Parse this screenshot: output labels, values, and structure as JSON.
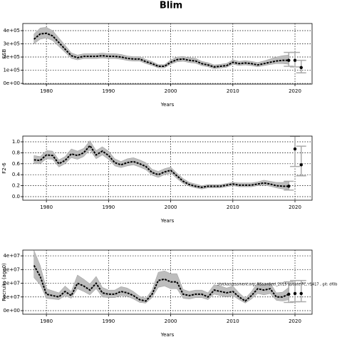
{
  "title": "Blim",
  "chart_data": [
    {
      "type": "line",
      "ylabel": "SSB",
      "xlabel": "Years",
      "x": [
        1978,
        1979,
        1980,
        1981,
        1982,
        1983,
        1984,
        1985,
        1986,
        1987,
        1988,
        1989,
        1990,
        1991,
        1992,
        1993,
        1994,
        1995,
        1996,
        1997,
        1998,
        1999,
        2000,
        2001,
        2002,
        2003,
        2004,
        2005,
        2006,
        2007,
        2008,
        2009,
        2010,
        2011,
        2012,
        2013,
        2014,
        2015,
        2016,
        2017,
        2018,
        2019
      ],
      "values": [
        335000.0,
        375000.0,
        380000.0,
        360000.0,
        310000.0,
        260000.0,
        210000.0,
        195000.0,
        205000.0,
        205000.0,
        205000.0,
        210000.0,
        205000.0,
        205000.0,
        200000.0,
        190000.0,
        185000.0,
        185000.0,
        165000.0,
        150000.0,
        130000.0,
        130000.0,
        160000.0,
        180000.0,
        185000.0,
        175000.0,
        170000.0,
        150000.0,
        140000.0,
        125000.0,
        130000.0,
        135000.0,
        160000.0,
        150000.0,
        155000.0,
        150000.0,
        140000.0,
        150000.0,
        160000.0,
        170000.0,
        175000.0,
        175000.0
      ],
      "lower": [
        300000.0,
        335000.0,
        345000.0,
        325000.0,
        280000.0,
        235000.0,
        190000.0,
        178000.0,
        188000.0,
        188000.0,
        188000.0,
        192000.0,
        188000.0,
        188000.0,
        183000.0,
        174000.0,
        169000.0,
        169000.0,
        150000.0,
        136000.0,
        118000.0,
        118000.0,
        145000.0,
        163000.0,
        168000.0,
        158000.0,
        153000.0,
        135000.0,
        126000.0,
        112000.0,
        117000.0,
        122000.0,
        145000.0,
        136000.0,
        140000.0,
        135000.0,
        126000.0,
        135000.0,
        143000.0,
        150000.0,
        150000.0,
        145000.0
      ],
      "upper": [
        375000.0,
        420000.0,
        425000.0,
        400000.0,
        345000.0,
        290000.0,
        232000.0,
        215000.0,
        225000.0,
        225000.0,
        225000.0,
        230000.0,
        225000.0,
        225000.0,
        220000.0,
        208000.0,
        203000.0,
        203000.0,
        182000.0,
        166000.0,
        143000.0,
        143000.0,
        178000.0,
        200000.0,
        205000.0,
        195000.0,
        190000.0,
        167000.0,
        157000.0,
        140000.0,
        145000.0,
        152000.0,
        178000.0,
        167000.0,
        172000.0,
        167000.0,
        158000.0,
        170000.0,
        185000.0,
        200000.0,
        210000.0,
        215000.0
      ],
      "points": {
        "x": [
          2019,
          2020,
          2021
        ],
        "values": [
          175000.0,
          175000.0,
          120000.0
        ],
        "lower": [
          130000.0,
          125000.0,
          80000.0
        ],
        "upper": [
          235000.0,
          235000.0,
          175000.0
        ]
      },
      "xlim": [
        1976.2,
        2022.75
      ],
      "xticks": [
        1980,
        1990,
        2000,
        2010,
        2020
      ],
      "ylim": [
        -5000,
        454000
      ],
      "yticks": [
        {
          "value": 0,
          "label": "0e+00"
        },
        {
          "value": 100000,
          "label": "1e+05"
        },
        {
          "value": 200000,
          "label": "2e+05"
        },
        {
          "value": 300000,
          "label": "3e+05"
        },
        {
          "value": 400000,
          "label": "4e+05"
        }
      ],
      "grid": true
    },
    {
      "type": "line",
      "ylabel": "F2-6",
      "xlabel": "Years",
      "x": [
        1978,
        1979,
        1980,
        1981,
        1982,
        1983,
        1984,
        1985,
        1986,
        1987,
        1988,
        1989,
        1990,
        1991,
        1992,
        1993,
        1994,
        1995,
        1996,
        1997,
        1998,
        1999,
        2000,
        2001,
        2002,
        2003,
        2004,
        2005,
        2006,
        2007,
        2008,
        2009,
        2010,
        2011,
        2012,
        2013,
        2014,
        2015,
        2016,
        2017,
        2018,
        2019
      ],
      "values": [
        0.67,
        0.66,
        0.76,
        0.75,
        0.6,
        0.66,
        0.78,
        0.75,
        0.8,
        0.93,
        0.76,
        0.83,
        0.75,
        0.62,
        0.58,
        0.62,
        0.64,
        0.6,
        0.55,
        0.44,
        0.4,
        0.45,
        0.48,
        0.38,
        0.28,
        0.22,
        0.19,
        0.17,
        0.19,
        0.19,
        0.19,
        0.21,
        0.23,
        0.21,
        0.21,
        0.21,
        0.23,
        0.25,
        0.23,
        0.2,
        0.19,
        0.19
      ],
      "lower": [
        0.6,
        0.6,
        0.69,
        0.68,
        0.54,
        0.6,
        0.71,
        0.68,
        0.73,
        0.85,
        0.69,
        0.76,
        0.68,
        0.56,
        0.53,
        0.56,
        0.58,
        0.54,
        0.49,
        0.39,
        0.35,
        0.4,
        0.43,
        0.33,
        0.24,
        0.19,
        0.16,
        0.14,
        0.16,
        0.16,
        0.16,
        0.18,
        0.2,
        0.18,
        0.18,
        0.18,
        0.2,
        0.21,
        0.19,
        0.16,
        0.14,
        0.13
      ],
      "upper": [
        0.75,
        0.73,
        0.84,
        0.83,
        0.67,
        0.73,
        0.87,
        0.83,
        0.88,
        1.02,
        0.84,
        0.91,
        0.83,
        0.69,
        0.64,
        0.69,
        0.71,
        0.67,
        0.62,
        0.5,
        0.46,
        0.51,
        0.54,
        0.43,
        0.33,
        0.26,
        0.23,
        0.2,
        0.22,
        0.22,
        0.22,
        0.24,
        0.26,
        0.25,
        0.25,
        0.25,
        0.27,
        0.3,
        0.28,
        0.26,
        0.26,
        0.28
      ],
      "points": {
        "x": [
          2019,
          2020,
          2021
        ],
        "values": [
          0.19,
          0.87,
          0.58
        ],
        "lower": [
          0.12,
          0.55,
          0.38
        ],
        "upper": [
          0.28,
          1.1,
          0.92
        ]
      },
      "xlim": [
        1976.2,
        2022.75
      ],
      "xticks": [
        1980,
        1990,
        2000,
        2010,
        2020
      ],
      "ylim": [
        -0.065,
        1.104
      ],
      "yticks": [
        {
          "value": 0,
          "label": "0.0"
        },
        0.2,
        0.4,
        0.6,
        0.8,
        {
          "value": 1,
          "label": "1.0"
        }
      ],
      "grid": true
    },
    {
      "type": "line",
      "ylabel": "Recruits (age0)",
      "xlabel": "Years",
      "annotation": "stockassessment.org, NSsandeel_2019 update FC, r1417 , git: df0b",
      "x": [
        1978,
        1979,
        1980,
        1981,
        1982,
        1983,
        1984,
        1985,
        1986,
        1987,
        1988,
        1989,
        1990,
        1991,
        1992,
        1993,
        1994,
        1995,
        1996,
        1997,
        1998,
        1999,
        2000,
        2001,
        2002,
        2003,
        2004,
        2005,
        2006,
        2007,
        2008,
        2009,
        2010,
        2011,
        2012,
        2013,
        2014,
        2015,
        2016,
        2017,
        2018,
        2019
      ],
      "values": [
        33000000.0,
        25000000.0,
        12000000.0,
        11000000.0,
        10000000.0,
        14000000.0,
        11000000.0,
        20000000.0,
        18000000.0,
        15000000.0,
        20000000.0,
        13000000.0,
        12000000.0,
        12000000.0,
        14000000.0,
        13000000.0,
        11000000.0,
        8000000.0,
        7000000.0,
        12000000.0,
        22000000.0,
        23000000.0,
        21000000.0,
        21000000.0,
        12000000.0,
        11000000.0,
        12000000.0,
        12000000.0,
        10000000.0,
        15000000.0,
        14000000.0,
        13000000.0,
        14000000.0,
        10000000.0,
        7000000.0,
        11000000.0,
        16000000.0,
        15000000.0,
        16000000.0,
        10000000.0,
        10000000.0,
        12000000.0
      ],
      "lower": [
        24000000.0,
        19000000.0,
        9000000.0,
        8500000.0,
        8000000.0,
        11000000.0,
        9000000.0,
        16000000.0,
        14000000.0,
        11500000.0,
        16000000.0,
        10000000.0,
        9500000.0,
        9500000.0,
        11000000.0,
        10500000.0,
        8500000.0,
        6000000.0,
        5500000.0,
        9500000.0,
        17000000.0,
        18000000.0,
        16000000.0,
        16000000.0,
        9000000.0,
        8500000.0,
        9500000.0,
        9500000.0,
        8000000.0,
        12000000.0,
        11000000.0,
        10000000.0,
        11000000.0,
        8000000.0,
        5500000.0,
        8500000.0,
        12500000.0,
        11500000.0,
        12500000.0,
        7500000.0,
        7000000.0,
        8000000.0
      ],
      "upper": [
        44000000.0,
        33000000.0,
        16000000.0,
        14500000.0,
        13000000.0,
        18000000.0,
        14000000.0,
        26000000.0,
        23000000.0,
        19500000.0,
        25000000.0,
        17000000.0,
        15000000.0,
        15000000.0,
        17500000.0,
        16500000.0,
        14000000.0,
        10500000.0,
        9000000.0,
        15000000.0,
        28000000.0,
        29000000.0,
        27000000.0,
        27000000.0,
        15500000.0,
        14000000.0,
        15000000.0,
        15000000.0,
        13000000.0,
        19000000.0,
        18000000.0,
        16500000.0,
        18000000.0,
        13000000.0,
        9000000.0,
        14000000.0,
        20500000.0,
        19000000.0,
        20500000.0,
        13000000.0,
        13500000.0,
        17000000.0
      ],
      "points": {
        "x": [
          2019,
          2020,
          2021
        ],
        "values": [
          12000000.0,
          12500000.0,
          12500000.0
        ],
        "lower": [
          6000000.0,
          6500000.0,
          6500000.0
        ],
        "upper": [
          21000000.0,
          22000000.0,
          22000000.0
        ]
      },
      "xlim": [
        1976.2,
        2022.75
      ],
      "xticks": [
        1980,
        1990,
        2000,
        2010,
        2020
      ],
      "ylim": [
        -2600000,
        44200000
      ],
      "yticks": [
        {
          "value": 0,
          "label": "0e+00"
        },
        {
          "value": 10000000,
          "label": "1e+07"
        },
        {
          "value": 20000000,
          "label": "2e+07"
        },
        {
          "value": 30000000,
          "label": "3e+07"
        },
        {
          "value": 40000000,
          "label": "4e+07"
        }
      ],
      "grid": true
    }
  ]
}
